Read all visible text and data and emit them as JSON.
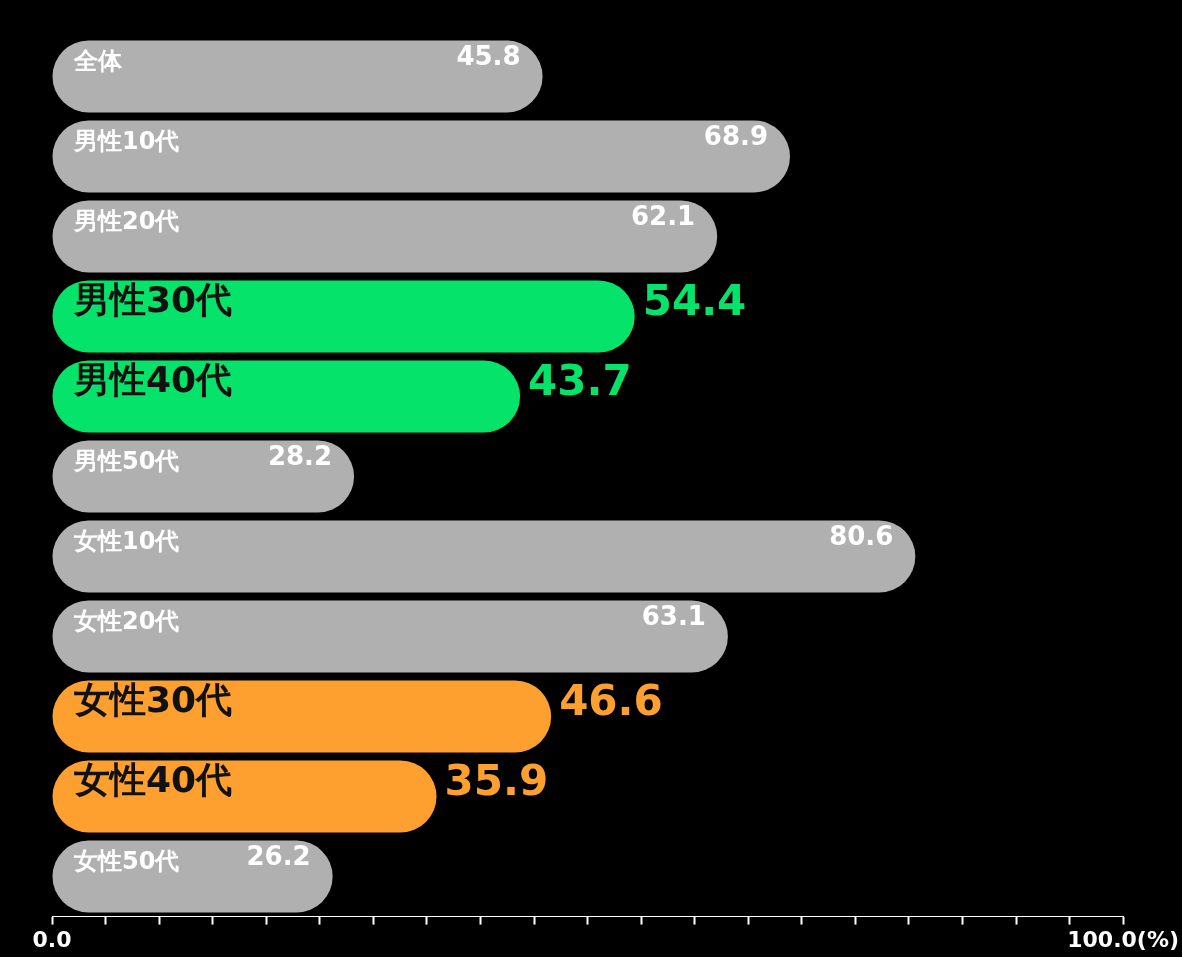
{
  "chart_data": {
    "type": "bar",
    "orientation": "horizontal",
    "categories": [
      "全体",
      "男性10代",
      "男性20代",
      "男性30代",
      "男性40代",
      "男性50代",
      "女性10代",
      "女性20代",
      "女性30代",
      "女性40代",
      "女性50代"
    ],
    "values": [
      45.8,
      68.9,
      62.1,
      54.4,
      43.7,
      28.2,
      80.6,
      63.1,
      46.6,
      35.9,
      26.2
    ],
    "colors": [
      "#b0b0b0",
      "#b0b0b0",
      "#b0b0b0",
      "#05e36a",
      "#05e36a",
      "#b0b0b0",
      "#b0b0b0",
      "#b0b0b0",
      "#fda030",
      "#fda030",
      "#b0b0b0"
    ],
    "xlim": [
      0,
      100
    ],
    "xticks": [
      {
        "value": 0,
        "label": "0.0"
      },
      {
        "value": 5,
        "label": null
      },
      {
        "value": 10,
        "label": null
      },
      {
        "value": 15,
        "label": null
      },
      {
        "value": 20,
        "label": null
      },
      {
        "value": 25,
        "label": null
      },
      {
        "value": 30,
        "label": null
      },
      {
        "value": 35,
        "label": null
      },
      {
        "value": 40,
        "label": null
      },
      {
        "value": 45,
        "label": null
      },
      {
        "value": 50,
        "label": null
      },
      {
        "value": 55,
        "label": null
      },
      {
        "value": 60,
        "label": null
      },
      {
        "value": 65,
        "label": null
      },
      {
        "value": 70,
        "label": null
      },
      {
        "value": 75,
        "label": null
      },
      {
        "value": 80,
        "label": null
      },
      {
        "value": 85,
        "label": null
      },
      {
        "value": 90,
        "label": null
      },
      {
        "value": 95,
        "label": null
      },
      {
        "value": 100,
        "label": "100.0(%)"
      }
    ],
    "data_labels": true,
    "grid": false,
    "legend": false
  }
}
